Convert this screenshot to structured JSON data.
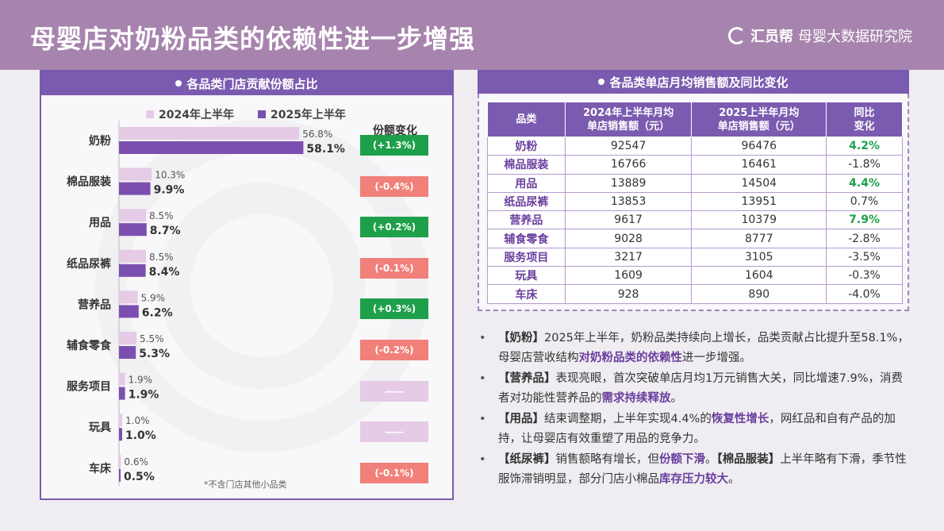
{
  "header": {
    "title": "母婴店对奶粉品类的依赖性进一步增强",
    "brand_name": "汇员帮",
    "brand_sub": "母婴大数据研究院"
  },
  "colors": {
    "bar_2024": "#e5cbe6",
    "bar_2025": "#7b4fb0",
    "header_bg": "#a784ae",
    "panel_title_bg": "#7b5bb0",
    "change_up": "#1ea04a",
    "change_down": "#f08079",
    "change_flat": "#e5cbe6"
  },
  "left_panel": {
    "title": "各品类门店贡献份额占比",
    "legend_2024": "2024年上半年",
    "legend_2025": "2025年上半年",
    "change_header": "份额变化",
    "footnote": "*不含门店其他小品类"
  },
  "chart_data": {
    "type": "bar",
    "orientation": "horizontal",
    "categories": [
      "奶粉",
      "棉品服装",
      "用品",
      "纸品尿裤",
      "营养品",
      "辅食零食",
      "服务项目",
      "玩具",
      "车床"
    ],
    "series": [
      {
        "name": "2024年上半年",
        "values": [
          56.8,
          10.3,
          8.5,
          8.5,
          5.9,
          5.5,
          1.9,
          1.0,
          0.6
        ],
        "labels": [
          "56.8%",
          "10.3%",
          "8.5%",
          "8.5%",
          "5.9%",
          "5.5%",
          "1.9%",
          "1.0%",
          "0.6%"
        ]
      },
      {
        "name": "2025年上半年",
        "values": [
          58.1,
          9.9,
          8.7,
          8.4,
          6.2,
          5.3,
          1.9,
          1.0,
          0.5
        ],
        "labels": [
          "58.1%",
          "9.9%",
          "8.7%",
          "8.4%",
          "6.2%",
          "5.3%",
          "1.9%",
          "1.0%",
          "0.5%"
        ]
      }
    ],
    "changes": [
      {
        "text": "(+1.3%)",
        "dir": "up"
      },
      {
        "text": "(-0.4%)",
        "dir": "down"
      },
      {
        "text": "(+0.2%)",
        "dir": "up"
      },
      {
        "text": "(-0.1%)",
        "dir": "down"
      },
      {
        "text": "(+0.3%)",
        "dir": "up"
      },
      {
        "text": "(-0.2%)",
        "dir": "down"
      },
      {
        "text": "——",
        "dir": "flat"
      },
      {
        "text": "——",
        "dir": "flat"
      },
      {
        "text": "(-0.1%)",
        "dir": "down"
      }
    ]
  },
  "right_panel": {
    "title": "各品类单店月均销售额及同比变化",
    "headers": [
      "品类",
      "2024年上半年月均\n单店销售额（元）",
      "2025上半年月均\n单店销售额（元）",
      "同比\n变化"
    ],
    "rows": [
      {
        "cat": "奶粉",
        "v2024": "92547",
        "v2025": "96476",
        "yoy": "4.2%",
        "pos": true
      },
      {
        "cat": "棉品服装",
        "v2024": "16766",
        "v2025": "16461",
        "yoy": "-1.8%",
        "pos": false
      },
      {
        "cat": "用品",
        "v2024": "13889",
        "v2025": "14504",
        "yoy": "4.4%",
        "pos": true
      },
      {
        "cat": "纸品尿裤",
        "v2024": "13853",
        "v2025": "13951",
        "yoy": "0.7%",
        "pos": false
      },
      {
        "cat": "营养品",
        "v2024": "9617",
        "v2025": "10379",
        "yoy": "7.9%",
        "pos": true
      },
      {
        "cat": "辅食零食",
        "v2024": "9028",
        "v2025": "8777",
        "yoy": "-2.8%",
        "pos": false
      },
      {
        "cat": "服务项目",
        "v2024": "3217",
        "v2025": "3105",
        "yoy": "-3.5%",
        "pos": false
      },
      {
        "cat": "玩具",
        "v2024": "1609",
        "v2025": "1604",
        "yoy": "-0.3%",
        "pos": false
      },
      {
        "cat": "车床",
        "v2024": "928",
        "v2025": "890",
        "yoy": "-4.0%",
        "pos": false
      }
    ]
  },
  "bullets": [
    [
      {
        "t": "【奶粉】",
        "s": "tag"
      },
      {
        "t": "2025年上半年，奶粉品类持续向上增长，品类贡献占比提升至58.1%，母婴店营收结构",
        "s": ""
      },
      {
        "t": "对奶粉品类的依赖性",
        "s": "hl"
      },
      {
        "t": "进一步增强。",
        "s": ""
      }
    ],
    [
      {
        "t": "【营养品】",
        "s": "tag"
      },
      {
        "t": "表现亮眼，首次突破单店月均1万元销售大关，同比增速7.9%，消费者对功能性营养品的",
        "s": ""
      },
      {
        "t": "需求持续释放",
        "s": "hl"
      },
      {
        "t": "。",
        "s": ""
      }
    ],
    [
      {
        "t": "【用品】",
        "s": "tag"
      },
      {
        "t": "结束调整期，上半年实现4.4%的",
        "s": ""
      },
      {
        "t": "恢复性增长",
        "s": "hl"
      },
      {
        "t": "，网红品和自有产品的加持，让母婴店有效重塑了用品的竞争力。",
        "s": ""
      }
    ],
    [
      {
        "t": "【纸尿裤】",
        "s": "tag"
      },
      {
        "t": "销售额略有增长，但",
        "s": ""
      },
      {
        "t": "份额下滑",
        "s": "hl"
      },
      {
        "t": "。",
        "s": ""
      },
      {
        "t": "【棉品服装】",
        "s": "tag"
      },
      {
        "t": "上半年略有下滑，季节性服饰滞销明显，部分门店小棉品",
        "s": ""
      },
      {
        "t": "库存压力较大",
        "s": "hl"
      },
      {
        "t": "。",
        "s": ""
      }
    ]
  ]
}
